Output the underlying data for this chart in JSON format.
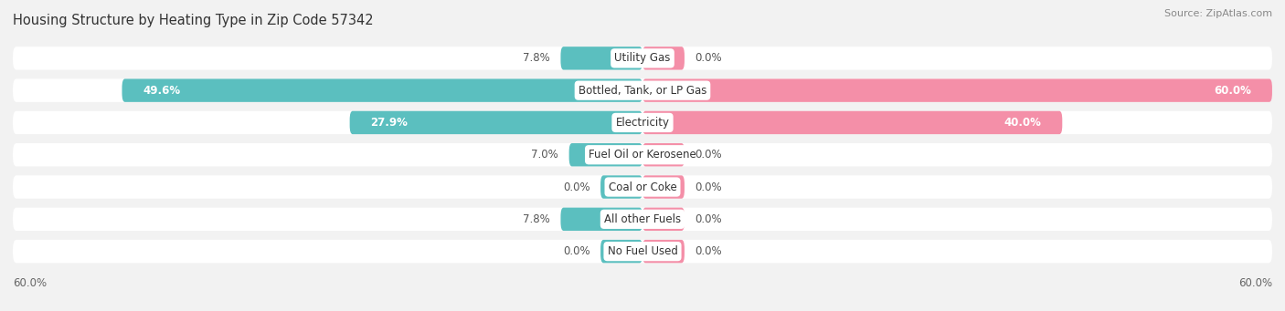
{
  "title": "Housing Structure by Heating Type in Zip Code 57342",
  "source": "Source: ZipAtlas.com",
  "categories": [
    "Utility Gas",
    "Bottled, Tank, or LP Gas",
    "Electricity",
    "Fuel Oil or Kerosene",
    "Coal or Coke",
    "All other Fuels",
    "No Fuel Used"
  ],
  "owner_values": [
    7.8,
    49.6,
    27.9,
    7.0,
    0.0,
    7.8,
    0.0
  ],
  "renter_values": [
    0.0,
    60.0,
    40.0,
    0.0,
    0.0,
    0.0,
    0.0
  ],
  "owner_color": "#5bbfbf",
  "renter_color": "#f48fa8",
  "axis_max": 60.0,
  "min_stub": 4.0,
  "bg_color": "#f2f2f2",
  "row_bg_color": "#ffffff",
  "row_alt_color": "#ebebeb",
  "title_fontsize": 10.5,
  "source_fontsize": 8,
  "label_fontsize": 8.5,
  "category_fontsize": 8.5,
  "legend_fontsize": 8.5,
  "axis_label_fontsize": 8.5
}
